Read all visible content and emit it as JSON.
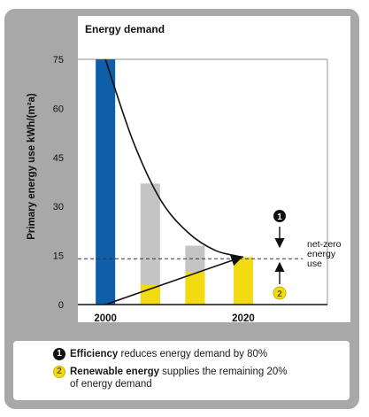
{
  "chart_data": {
    "type": "bar",
    "title": "Energy demand",
    "ylabel": "Primary energy use kWh/(m²a)",
    "ylim": [
      0,
      75
    ],
    "yticks": [
      0,
      15,
      30,
      45,
      60,
      75
    ],
    "xtick_labels": [
      {
        "label": "2000",
        "at": 2000
      },
      {
        "label": "2020",
        "at": 2020
      }
    ],
    "series": [
      {
        "color": "#0e5fa8",
        "points": [
          {
            "x": 2000,
            "value": 75
          }
        ]
      },
      {
        "color": "#c4c4c4",
        "points": [
          {
            "x": 2006.5,
            "value": 37
          },
          {
            "x": 2013,
            "value": 18
          }
        ]
      },
      {
        "color": "#f2db11",
        "points": [
          {
            "x": 2006.5,
            "value": 6
          },
          {
            "x": 2013,
            "value": 10
          },
          {
            "x": 2020,
            "value": 14.5
          }
        ]
      }
    ],
    "efficiency_curve": [
      [
        2000,
        75
      ],
      [
        2004,
        50
      ],
      [
        2008,
        32
      ],
      [
        2012,
        22
      ],
      [
        2016,
        16.5
      ],
      [
        2020,
        14.5
      ]
    ],
    "renewable_line": [
      [
        2000,
        0
      ],
      [
        2020,
        14.5
      ]
    ],
    "reference_line": {
      "value": 14,
      "label_lines": [
        "net-zero",
        "energy",
        "use"
      ]
    },
    "markers": [
      {
        "symbol": "1",
        "color": "#111111"
      },
      {
        "symbol": "2",
        "color": "#f2db11"
      }
    ]
  },
  "legend": {
    "item1": {
      "marker": "1",
      "bold": "Efficiency",
      "text": " reduces energy demand by 80%"
    },
    "item2": {
      "marker": "2",
      "bold": "Renewable energy",
      "text": " supplies the remaining 20%",
      "text2": "of energy demand"
    }
  }
}
